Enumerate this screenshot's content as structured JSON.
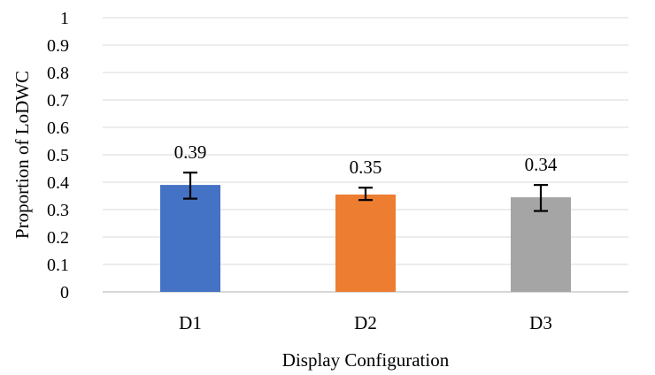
{
  "chart_data": {
    "type": "bar",
    "title": "",
    "xlabel": "Display Configuration",
    "ylabel": "Proportion of LoDWC",
    "ylim": [
      0,
      1
    ],
    "yticks": [
      "0",
      "0.1",
      "0.2",
      "0.3",
      "0.4",
      "0.5",
      "0.6",
      "0.7",
      "0.8",
      "0.9",
      "1"
    ],
    "categories": [
      "D1",
      "D2",
      "D3"
    ],
    "values": [
      0.39,
      0.355,
      0.345
    ],
    "data_labels": [
      "0.39",
      "0.35",
      "0.34"
    ],
    "error_low": [
      0.34,
      0.335,
      0.295
    ],
    "error_high": [
      0.435,
      0.38,
      0.39
    ],
    "colors": [
      "#4472c4",
      "#ed7d31",
      "#a5a5a5"
    ],
    "grid": true,
    "legend": "none"
  }
}
